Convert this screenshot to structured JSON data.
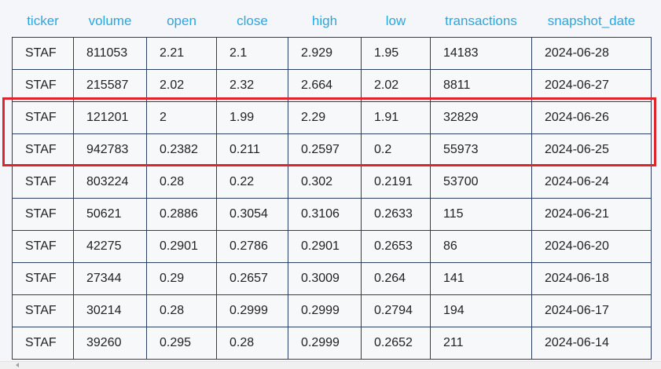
{
  "table": {
    "columns": [
      "ticker",
      "volume",
      "open",
      "close",
      "high",
      "low",
      "transactions",
      "snapshot_date"
    ],
    "rows": [
      [
        "STAF",
        "811053",
        "2.21",
        "2.1",
        "2.929",
        "1.95",
        "14183",
        "2024-06-28"
      ],
      [
        "STAF",
        "215587",
        "2.02",
        "2.32",
        "2.664",
        "2.02",
        "8811",
        "2024-06-27"
      ],
      [
        "STAF",
        "121201",
        "2",
        "1.99",
        "2.29",
        "1.91",
        "32829",
        "2024-06-26"
      ],
      [
        "STAF",
        "942783",
        "0.2382",
        "0.211",
        "0.2597",
        "0.2",
        "55973",
        "2024-06-25"
      ],
      [
        "STAF",
        "803224",
        "0.28",
        "0.22",
        "0.302",
        "0.2191",
        "53700",
        "2024-06-24"
      ],
      [
        "STAF",
        "50621",
        "0.2886",
        "0.3054",
        "0.3106",
        "0.2633",
        "115",
        "2024-06-21"
      ],
      [
        "STAF",
        "42275",
        "0.2901",
        "0.2786",
        "0.2901",
        "0.2653",
        "86",
        "2024-06-20"
      ],
      [
        "STAF",
        "27344",
        "0.29",
        "0.2657",
        "0.3009",
        "0.264",
        "141",
        "2024-06-18"
      ],
      [
        "STAF",
        "30214",
        "0.28",
        "0.2999",
        "0.2999",
        "0.2794",
        "194",
        "2024-06-17"
      ],
      [
        "STAF",
        "39260",
        "0.295",
        "0.28",
        "0.2999",
        "0.2652",
        "211",
        "2024-06-14"
      ]
    ],
    "highlighted_rows": [
      2,
      3
    ]
  },
  "colors": {
    "header_text": "#29a8e0",
    "grid_line": "#2c3e62",
    "highlight": "#e0242b",
    "cell_background": "#f7f8fa"
  },
  "scrollbar": {
    "icon": "chevron-left-icon"
  }
}
